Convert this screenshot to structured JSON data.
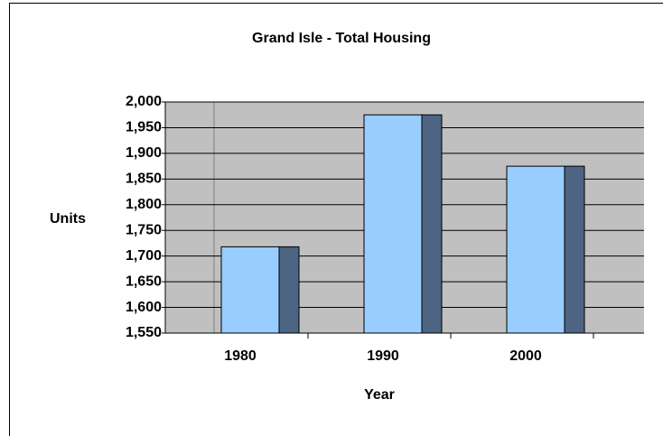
{
  "chart_data": {
    "type": "bar",
    "title": "Grand Isle - Total Housing",
    "x_label": "Year",
    "y_label": "Units",
    "categories": [
      "1980",
      "1990",
      "2000"
    ],
    "values": [
      1718,
      1975,
      1875
    ],
    "color": "#99ccff",
    "side_color": "#4d6482",
    "ylim": [
      1550,
      2000
    ],
    "yticks": [
      {
        "value": 1550,
        "label": "1,550"
      },
      {
        "value": 1600,
        "label": "1,600"
      },
      {
        "value": 1650,
        "label": "1,650"
      },
      {
        "value": 1700,
        "label": "1,700"
      },
      {
        "value": 1750,
        "label": "1,750"
      },
      {
        "value": 1800,
        "label": "1,800"
      },
      {
        "value": 1850,
        "label": "1,850"
      },
      {
        "value": 1900,
        "label": "1,900"
      },
      {
        "value": 1950,
        "label": "1,950"
      },
      {
        "value": 2000,
        "label": "2,000"
      }
    ],
    "grid": true
  }
}
